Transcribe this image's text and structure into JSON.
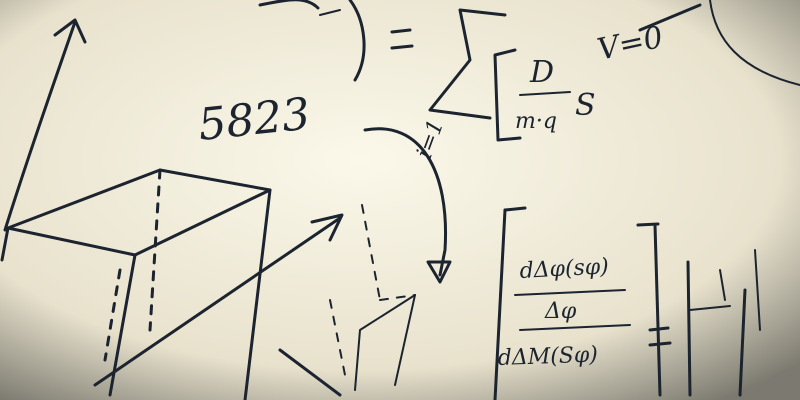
{
  "scene": {
    "colors": {
      "board": "#f2efe0",
      "board_shadow": "#d9d3bd",
      "ink": "#1c2430",
      "vignette": "#3a3a3a"
    },
    "writing": {
      "number": "5823",
      "summation_lower": "i=1",
      "sum_arg_top": "D",
      "sum_arg_bottom": "m·q",
      "sum_tail": "S",
      "rhs_fragment": "V=0",
      "frac_top": "dΔφ(sφ)",
      "frac_mid": "Δφ",
      "frac_bottom": "dΔM(Sφ)",
      "equals": "="
    }
  }
}
